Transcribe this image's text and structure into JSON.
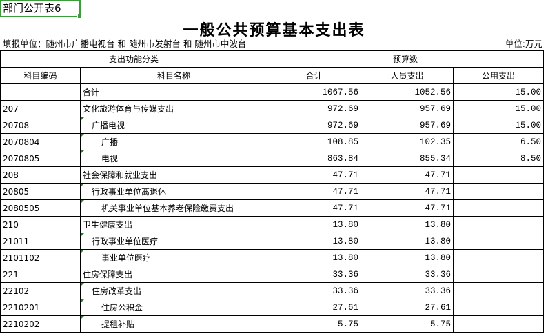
{
  "sheet_label": "部门公开表6",
  "title": "一般公共预算基本支出表",
  "unit_info": "填报单位：随州市广播电视台 和 随州市发射台 和 随州市中波台",
  "unit": "单位:万元",
  "headers": {
    "group1": "支出功能分类",
    "group2": "预算数",
    "code": "科目编码",
    "name": "科目名称",
    "total": "合计",
    "personnel": "人员支出",
    "public": "公用支出"
  },
  "rows": [
    {
      "code": "",
      "name": "合计",
      "level": 1,
      "total": "1067.56",
      "personnel": "1052.56",
      "public": "15.00"
    },
    {
      "code": "207",
      "name": "文化旅游体育与传媒支出",
      "level": 1,
      "total": "972.69",
      "personnel": "957.69",
      "public": "15.00"
    },
    {
      "code": "20708",
      "name": "广播电视",
      "level": 2,
      "total": "972.69",
      "personnel": "957.69",
      "public": "15.00"
    },
    {
      "code": "2070804",
      "name": "广播",
      "level": 3,
      "total": "108.85",
      "personnel": "102.35",
      "public": "6.50"
    },
    {
      "code": "2070805",
      "name": "电视",
      "level": 3,
      "total": "863.84",
      "personnel": "855.34",
      "public": "8.50"
    },
    {
      "code": "208",
      "name": "社会保障和就业支出",
      "level": 1,
      "total": "47.71",
      "personnel": "47.71",
      "public": ""
    },
    {
      "code": "20805",
      "name": "行政事业单位离退休",
      "level": 2,
      "total": "47.71",
      "personnel": "47.71",
      "public": ""
    },
    {
      "code": "2080505",
      "name": "机关事业单位基本养老保险缴费支出",
      "level": 3,
      "total": "47.71",
      "personnel": "47.71",
      "public": ""
    },
    {
      "code": "210",
      "name": "卫生健康支出",
      "level": 1,
      "total": "13.80",
      "personnel": "13.80",
      "public": ""
    },
    {
      "code": "21011",
      "name": "行政事业单位医疗",
      "level": 2,
      "total": "13.80",
      "personnel": "13.80",
      "public": ""
    },
    {
      "code": "2101102",
      "name": "事业单位医疗",
      "level": 3,
      "total": "13.80",
      "personnel": "13.80",
      "public": ""
    },
    {
      "code": "221",
      "name": "住房保障支出",
      "level": 1,
      "total": "33.36",
      "personnel": "33.36",
      "public": ""
    },
    {
      "code": "22102",
      "name": "住房改革支出",
      "level": 2,
      "total": "33.36",
      "personnel": "33.36",
      "public": ""
    },
    {
      "code": "2210201",
      "name": "住房公积金",
      "level": 3,
      "total": "27.61",
      "personnel": "27.61",
      "public": ""
    },
    {
      "code": "2210202",
      "name": "提租补贴",
      "level": 3,
      "total": "5.75",
      "personnel": "5.75",
      "public": ""
    }
  ],
  "colors": {
    "selection": "#3c9c3c",
    "indicator": "#1a8a1a"
  }
}
